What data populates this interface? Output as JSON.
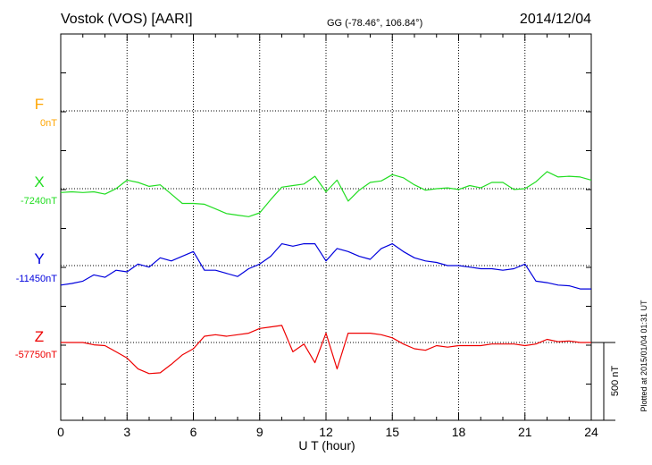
{
  "header": {
    "station": "Vostok (VOS)  [AARI]",
    "coords": "GG (-78.46°, 106.84°)",
    "date": "2014/12/04"
  },
  "footer": {
    "plotted": "Plotted at 2015/01/04 01:31 UT",
    "scale_label": "500 nT"
  },
  "colors": {
    "F": "#ffa500",
    "X": "#22dd22",
    "Y": "#0000dd",
    "Z": "#ee0000"
  },
  "chart_data": {
    "type": "line",
    "title": "Vostok (VOS)  [AARI]",
    "xlabel": "U T (hour)",
    "ylabel": "",
    "xlim": [
      0,
      24
    ],
    "x_ticks": [
      0,
      3,
      6,
      9,
      12,
      15,
      18,
      21,
      24
    ],
    "scale_bar_nT": 500,
    "grid": true,
    "series": [
      {
        "name": "F",
        "baseline": "0nT",
        "baseline_nT": 0,
        "points": []
      },
      {
        "name": "X",
        "baseline": "-7240nT",
        "baseline_nT": -7240,
        "points": [
          [
            0,
            -7265
          ],
          [
            0.5,
            -7260
          ],
          [
            1,
            -7265
          ],
          [
            1.5,
            -7260
          ],
          [
            2,
            -7275
          ],
          [
            2.5,
            -7240
          ],
          [
            3,
            -7185
          ],
          [
            3.5,
            -7200
          ],
          [
            4,
            -7225
          ],
          [
            4.5,
            -7215
          ],
          [
            5,
            -7275
          ],
          [
            5.5,
            -7335
          ],
          [
            6,
            -7335
          ],
          [
            6.5,
            -7340
          ],
          [
            7,
            -7370
          ],
          [
            7.5,
            -7400
          ],
          [
            8,
            -7410
          ],
          [
            8.5,
            -7420
          ],
          [
            9,
            -7395
          ],
          [
            9.5,
            -7310
          ],
          [
            10,
            -7230
          ],
          [
            10.5,
            -7220
          ],
          [
            11,
            -7210
          ],
          [
            11.5,
            -7160
          ],
          [
            12,
            -7260
          ],
          [
            12.5,
            -7185
          ],
          [
            13,
            -7320
          ],
          [
            13.5,
            -7250
          ],
          [
            14,
            -7200
          ],
          [
            14.5,
            -7190
          ],
          [
            15,
            -7150
          ],
          [
            15.5,
            -7170
          ],
          [
            16,
            -7215
          ],
          [
            16.5,
            -7250
          ],
          [
            17,
            -7240
          ],
          [
            17.5,
            -7235
          ],
          [
            18,
            -7245
          ],
          [
            18.5,
            -7220
          ],
          [
            19,
            -7235
          ],
          [
            19.5,
            -7200
          ],
          [
            20,
            -7200
          ],
          [
            20.5,
            -7245
          ],
          [
            21,
            -7240
          ],
          [
            21.5,
            -7195
          ],
          [
            22,
            -7130
          ],
          [
            22.5,
            -7165
          ],
          [
            23,
            -7160
          ],
          [
            23.5,
            -7165
          ],
          [
            24,
            -7185
          ]
        ]
      },
      {
        "name": "Y",
        "baseline": "-11450nT",
        "baseline_nT": -11450,
        "points": [
          [
            0,
            -11575
          ],
          [
            0.5,
            -11565
          ],
          [
            1,
            -11550
          ],
          [
            1.5,
            -11510
          ],
          [
            2,
            -11525
          ],
          [
            2.5,
            -11480
          ],
          [
            3,
            -11490
          ],
          [
            3.5,
            -11440
          ],
          [
            4,
            -11460
          ],
          [
            4.5,
            -11400
          ],
          [
            5,
            -11420
          ],
          [
            5.5,
            -11390
          ],
          [
            6,
            -11360
          ],
          [
            6.5,
            -11480
          ],
          [
            7,
            -11480
          ],
          [
            7.5,
            -11500
          ],
          [
            8,
            -11520
          ],
          [
            8.5,
            -11470
          ],
          [
            9,
            -11440
          ],
          [
            9.5,
            -11390
          ],
          [
            10,
            -11310
          ],
          [
            10.5,
            -11325
          ],
          [
            11,
            -11310
          ],
          [
            11.5,
            -11310
          ],
          [
            12,
            -11420
          ],
          [
            12.5,
            -11340
          ],
          [
            13,
            -11360
          ],
          [
            13.5,
            -11390
          ],
          [
            14,
            -11410
          ],
          [
            14.5,
            -11340
          ],
          [
            15,
            -11310
          ],
          [
            15.5,
            -11360
          ],
          [
            16,
            -11400
          ],
          [
            16.5,
            -11420
          ],
          [
            17,
            -11430
          ],
          [
            17.5,
            -11450
          ],
          [
            18,
            -11450
          ],
          [
            18.5,
            -11460
          ],
          [
            19,
            -11470
          ],
          [
            19.5,
            -11470
          ],
          [
            20,
            -11480
          ],
          [
            20.5,
            -11470
          ],
          [
            21,
            -11440
          ],
          [
            21.5,
            -11550
          ],
          [
            22,
            -11560
          ],
          [
            22.5,
            -11575
          ],
          [
            23,
            -11580
          ],
          [
            23.5,
            -11600
          ],
          [
            24,
            -11600
          ]
        ]
      },
      {
        "name": "Z",
        "baseline": "-57750nT",
        "baseline_nT": -57750,
        "points": [
          [
            0,
            -57750
          ],
          [
            0.5,
            -57750
          ],
          [
            1,
            -57750
          ],
          [
            1.5,
            -57765
          ],
          [
            2,
            -57770
          ],
          [
            2.5,
            -57810
          ],
          [
            3,
            -57850
          ],
          [
            3.5,
            -57920
          ],
          [
            4,
            -57950
          ],
          [
            4.5,
            -57945
          ],
          [
            5,
            -57890
          ],
          [
            5.5,
            -57830
          ],
          [
            6,
            -57790
          ],
          [
            6.5,
            -57710
          ],
          [
            7,
            -57700
          ],
          [
            7.5,
            -57710
          ],
          [
            8,
            -57700
          ],
          [
            8.5,
            -57690
          ],
          [
            9,
            -57660
          ],
          [
            9.5,
            -57650
          ],
          [
            10,
            -57640
          ],
          [
            10.5,
            -57810
          ],
          [
            11,
            -57760
          ],
          [
            11.5,
            -57880
          ],
          [
            12,
            -57690
          ],
          [
            12.5,
            -57920
          ],
          [
            13,
            -57690
          ],
          [
            13.5,
            -57690
          ],
          [
            14,
            -57690
          ],
          [
            14.5,
            -57700
          ],
          [
            15,
            -57720
          ],
          [
            15.5,
            -57760
          ],
          [
            16,
            -57790
          ],
          [
            16.5,
            -57800
          ],
          [
            17,
            -57770
          ],
          [
            17.5,
            -57780
          ],
          [
            18,
            -57770
          ],
          [
            18.5,
            -57770
          ],
          [
            19,
            -57770
          ],
          [
            19.5,
            -57760
          ],
          [
            20,
            -57760
          ],
          [
            20.5,
            -57760
          ],
          [
            21,
            -57770
          ],
          [
            21.5,
            -57760
          ],
          [
            22,
            -57730
          ],
          [
            22.5,
            -57745
          ],
          [
            23,
            -57740
          ],
          [
            23.5,
            -57750
          ],
          [
            24,
            -57750
          ]
        ]
      }
    ]
  }
}
